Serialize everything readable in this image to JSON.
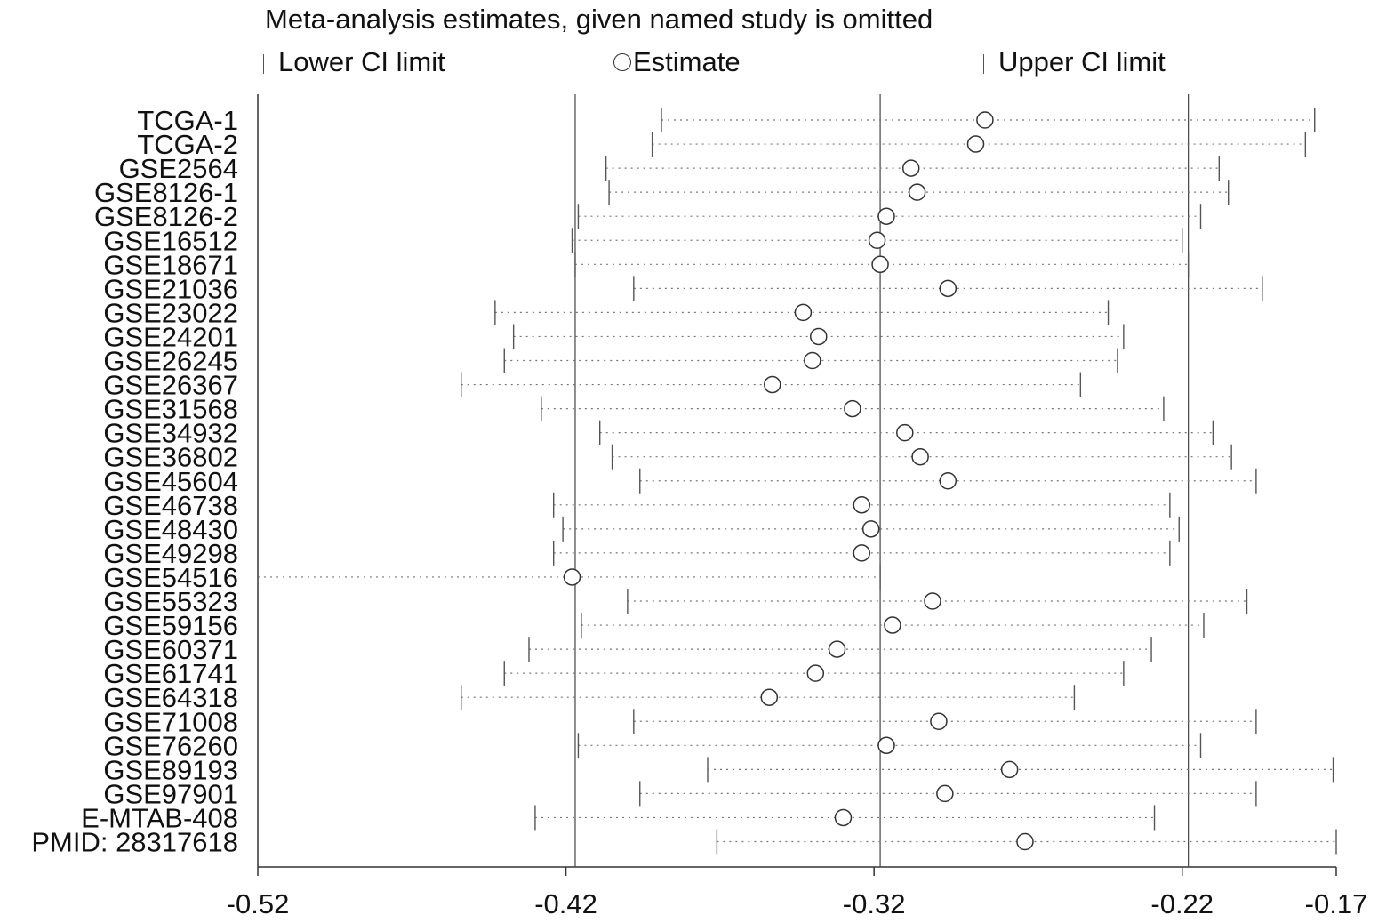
{
  "chart_data": {
    "type": "forest",
    "title": "Meta-analysis estimates, given named study is omitted",
    "legend": {
      "lower": "Lower CI limit",
      "estimate": "Estimate",
      "upper": "Upper CI limit"
    },
    "xlim": [
      -0.52,
      -0.17
    ],
    "xticks": [
      "-0.52",
      "-0.42",
      "-0.32",
      "-0.22",
      "-0.17"
    ],
    "xtick_values": [
      -0.52,
      -0.42,
      -0.32,
      -0.22,
      -0.17
    ],
    "reference_lines": [
      -0.417,
      -0.318,
      -0.218
    ],
    "studies": [
      {
        "label": "TCGA-1",
        "lower": -0.389,
        "estimate": -0.284,
        "upper": -0.177
      },
      {
        "label": "TCGA-2",
        "lower": -0.392,
        "estimate": -0.287,
        "upper": -0.18
      },
      {
        "label": "GSE2564",
        "lower": -0.407,
        "estimate": -0.308,
        "upper": -0.208
      },
      {
        "label": "GSE8126-1",
        "lower": -0.406,
        "estimate": -0.306,
        "upper": -0.205
      },
      {
        "label": "GSE8126-2",
        "lower": -0.416,
        "estimate": -0.316,
        "upper": -0.214
      },
      {
        "label": "GSE16512",
        "lower": -0.418,
        "estimate": -0.319,
        "upper": -0.22
      },
      {
        "label": "GSE18671",
        "lower": -0.417,
        "estimate": -0.318,
        "upper": -0.218
      },
      {
        "label": "GSE21036",
        "lower": -0.398,
        "estimate": -0.296,
        "upper": -0.194
      },
      {
        "label": "GSE23022",
        "lower": -0.443,
        "estimate": -0.343,
        "upper": -0.244
      },
      {
        "label": "GSE24201",
        "lower": -0.437,
        "estimate": -0.338,
        "upper": -0.239
      },
      {
        "label": "GSE26245",
        "lower": -0.44,
        "estimate": -0.34,
        "upper": -0.241
      },
      {
        "label": "GSE26367",
        "lower": -0.454,
        "estimate": -0.353,
        "upper": -0.253
      },
      {
        "label": "GSE31568",
        "lower": -0.428,
        "estimate": -0.327,
        "upper": -0.226
      },
      {
        "label": "GSE34932",
        "lower": -0.409,
        "estimate": -0.31,
        "upper": -0.21
      },
      {
        "label": "GSE36802",
        "lower": -0.405,
        "estimate": -0.305,
        "upper": -0.204
      },
      {
        "label": "GSE45604",
        "lower": -0.396,
        "estimate": -0.296,
        "upper": -0.196
      },
      {
        "label": "GSE46738",
        "lower": -0.424,
        "estimate": -0.324,
        "upper": -0.224
      },
      {
        "label": "GSE48430",
        "lower": -0.421,
        "estimate": -0.321,
        "upper": -0.221
      },
      {
        "label": "GSE49298",
        "lower": -0.424,
        "estimate": -0.324,
        "upper": -0.224
      },
      {
        "label": "GSE54516",
        "lower": -0.52,
        "estimate": -0.418,
        "upper": -0.318
      },
      {
        "label": "GSE55323",
        "lower": -0.4,
        "estimate": -0.301,
        "upper": -0.199
      },
      {
        "label": "GSE59156",
        "lower": -0.415,
        "estimate": -0.314,
        "upper": -0.213
      },
      {
        "label": "GSE60371",
        "lower": -0.432,
        "estimate": -0.332,
        "upper": -0.23
      },
      {
        "label": "GSE61741",
        "lower": -0.44,
        "estimate": -0.339,
        "upper": -0.239
      },
      {
        "label": "GSE64318",
        "lower": -0.454,
        "estimate": -0.354,
        "upper": -0.255
      },
      {
        "label": "GSE71008",
        "lower": -0.398,
        "estimate": -0.299,
        "upper": -0.196
      },
      {
        "label": "GSE76260",
        "lower": -0.416,
        "estimate": -0.316,
        "upper": -0.214
      },
      {
        "label": "GSE89193",
        "lower": -0.374,
        "estimate": -0.276,
        "upper": -0.171
      },
      {
        "label": "GSE97901",
        "lower": -0.396,
        "estimate": -0.297,
        "upper": -0.196
      },
      {
        "label": "E-MTAB-408",
        "lower": -0.43,
        "estimate": -0.33,
        "upper": -0.229
      },
      {
        "label": "PMID: 28317618",
        "lower": -0.371,
        "estimate": -0.271,
        "upper": -0.17
      }
    ]
  }
}
